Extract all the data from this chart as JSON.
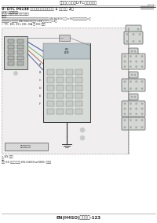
{
  "title_top": "使用诊断资料（DTC）诊断程序",
  "top_right_text": "发动机（诊断分册）",
  "section_title": "V: DTC P0138 氧传感器电路高电压（第 1 排传感器 2）",
  "sub_title1": "DTC 检测条件：",
  "sub_title2": "监测到以下诊断故障检测的条件：",
  "note_label": "注意：",
  "note_lines": [
    "检测这些故障码的诊断管理器功能。执行诊断扫描器模式：参数显示 EN(H4SO)(分册)>38，温度传感器模式。>和",
    "检测模式：>参数显示 EN(H4SO)(分册)>38，检测模式：>4。"
  ],
  "applicable_text": "• TC, EK, EH, DK, KA 和 KH 车型",
  "bottom_note_label": "• KS 车型",
  "bottom_note_line1": "注：",
  "bottom_note_line2": "对于 KS 车型，请参阅 EN-H4SO(w/OBD) 部分。",
  "footer": "EN(H4SO)（分册）-123",
  "page_bg": "#ffffff",
  "text_color": "#2a2a2a",
  "diagram_border": "#aaaaaa",
  "diagram_bg": "#eef0ee",
  "connector_fill": "#d0d4d0",
  "connector_stroke": "#555555",
  "wire_color": "#4466aa",
  "ecm_fill": "#d8dcd8",
  "right_conn_fill": "#cccccc"
}
